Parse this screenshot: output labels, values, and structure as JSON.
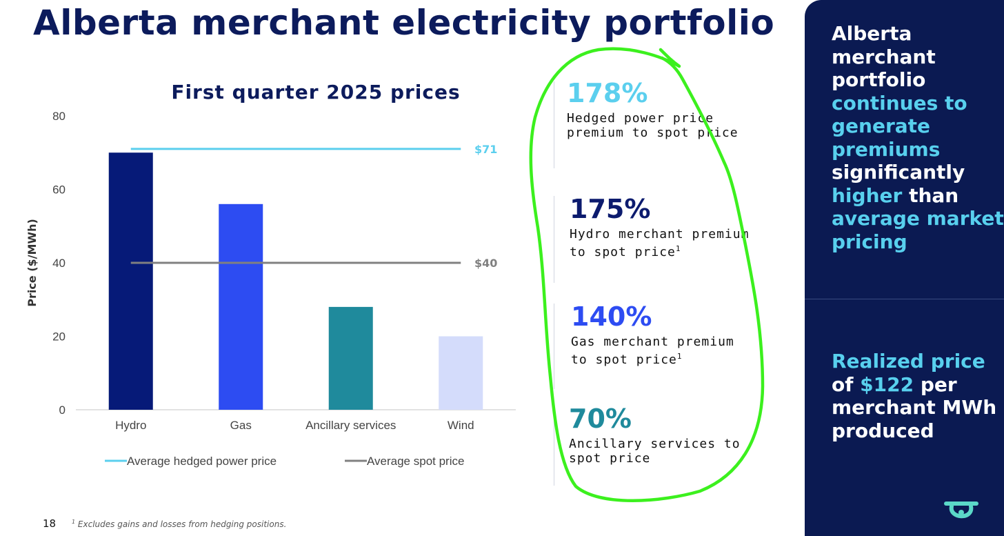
{
  "page_title": "Alberta merchant electricity portfolio",
  "page_number": "18",
  "footnote_marker": "1",
  "footnote_text": "Excludes gains and losses from hedging positions.",
  "chart_data": {
    "type": "bar",
    "title": "First quarter 2025 prices",
    "ylabel": "Price ($/MWh)",
    "xlabel": "",
    "ylim": [
      0,
      80
    ],
    "yticks": [
      0,
      20,
      40,
      60,
      80
    ],
    "categories": [
      "Hydro",
      "Gas",
      "Ancillary services",
      "Wind"
    ],
    "values": [
      70,
      56,
      28,
      20
    ],
    "bar_colors": [
      "#061a78",
      "#2d4cf2",
      "#1f8a9c",
      "#d4dcfb"
    ],
    "reference_lines": [
      {
        "name": "Average hedged power price",
        "value": 71,
        "label": "$71",
        "color": "#5bcfee"
      },
      {
        "name": "Average spot price",
        "value": 40,
        "label": "$40",
        "color": "#808080"
      }
    ],
    "legend": [
      "Average hedged power price",
      "Average spot price"
    ],
    "legend_position": "bottom",
    "grid": false
  },
  "metrics": [
    {
      "value": "178%",
      "color": "#5bcfee",
      "line1": "Hedged power price",
      "line2": "premium to spot price",
      "sup": ""
    },
    {
      "value": "175%",
      "color": "#0c1b6e",
      "line1": "Hydro merchant premium",
      "line2": "to spot price",
      "sup": "1"
    },
    {
      "value": "140%",
      "color": "#2d4cf2",
      "line1": "Gas merchant premium",
      "line2": "to spot price",
      "sup": "1"
    },
    {
      "value": "70%",
      "color": "#1f8a9c",
      "line1": "Ancillary services to",
      "line2": "spot price",
      "sup": ""
    }
  ],
  "sidebar": {
    "top": {
      "w1": "Alberta",
      "w2": "merchant",
      "w3": "portfolio",
      "w4": "continues to",
      "w5": "generate",
      "w6": "premiums",
      "w7": "significantly",
      "w8": "higher",
      "w9": "than",
      "w10": "average market",
      "w11": "pricing"
    },
    "bottom": {
      "w1": "Realized price",
      "w2": "of",
      "w3": "$122",
      "w4": "per",
      "w5": "merchant MWh",
      "w6": "produced"
    }
  },
  "colors": {
    "navy": "#0b1a52",
    "highlight": "#58d0ee",
    "annotation": "#3cf01e"
  },
  "icons": {
    "logo": "transalta-logo-icon"
  }
}
